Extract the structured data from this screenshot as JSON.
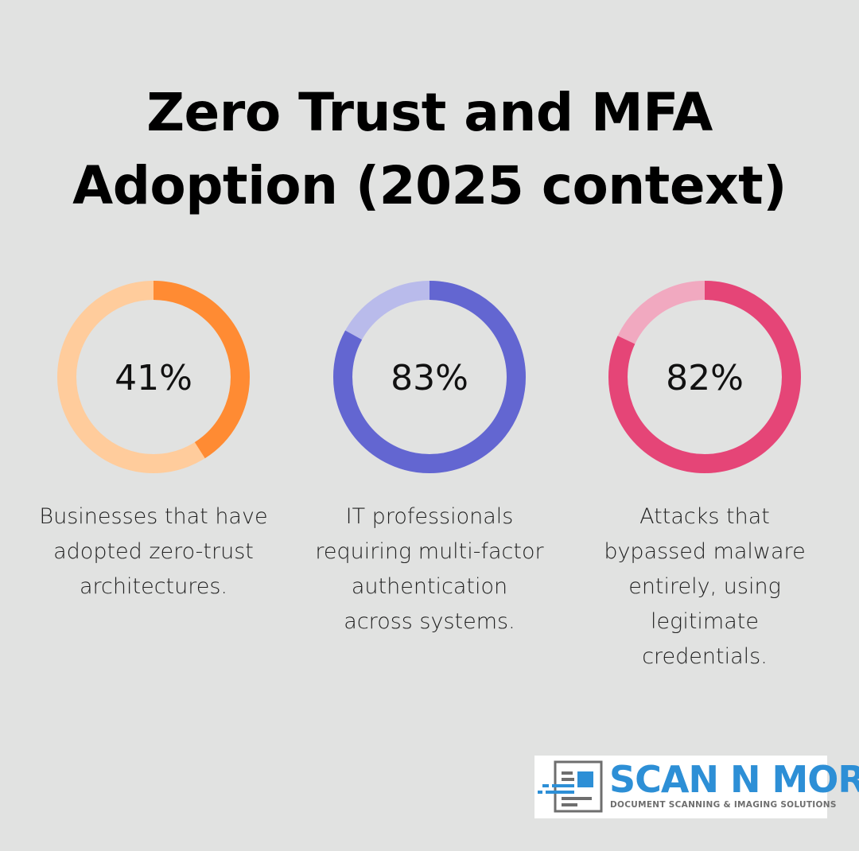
{
  "title_lines": [
    "Zero Trust and MFA",
    "Adoption (2025 context)"
  ],
  "chart_data": {
    "type": "pie",
    "subtype": "donut",
    "items": [
      {
        "value": 41,
        "label": "41%",
        "description": [
          "Businesses that have",
          "adopted zero-trust",
          "architectures."
        ],
        "color": "#ff8b33",
        "track_color": "#ffcc9c"
      },
      {
        "value": 83,
        "label": "83%",
        "description": [
          "IT professionals",
          "requiring multi-factor",
          "authentication",
          "across systems."
        ],
        "color": "#6366d1",
        "track_color": "#b9bbeb"
      },
      {
        "value": 82,
        "label": "82%",
        "description": [
          "Attacks that",
          "bypassed malware",
          "entirely, using",
          "legitimate",
          "credentials."
        ],
        "color": "#e54577",
        "track_color": "#f1a9c0"
      }
    ]
  },
  "logo": {
    "brand": "SCAN N MORE",
    "tagline": "DOCUMENT SCANNING & IMAGING SOLUTIONS",
    "primary_color": "#2d8fd6",
    "secondary_color": "#6e6e6e"
  }
}
